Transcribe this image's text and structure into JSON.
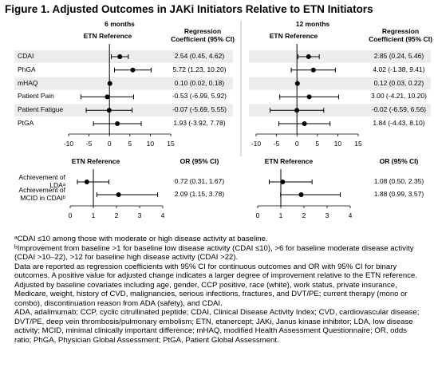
{
  "title": "Figure 1. Adjusted Outcomes in JAKi Initiators Relative to ETN Initiators",
  "chart_data": [
    {
      "type": "forest",
      "title": "6 months",
      "reference_label": "ETN Reference",
      "value_header": "Regression Coefficient (95% CI)",
      "categories": [
        "CDAI",
        "PhGA",
        "mHAQ",
        "Patient Pain",
        "Patient Fatigue",
        "PtGA"
      ],
      "values": [
        2.54,
        5.72,
        0.1,
        -0.53,
        -0.07,
        1.93
      ],
      "ci_low": [
        0.45,
        1.23,
        0.02,
        -6.99,
        -5.69,
        -3.92
      ],
      "ci_high": [
        4.62,
        10.2,
        0.18,
        5.92,
        5.55,
        7.78
      ],
      "value_labels": [
        "2.54 (0.45, 4.62)",
        "5.72 (1.23, 10.20)",
        "0.10 (0.02, 0.18)",
        "-0.53 (-6.99, 5.92)",
        "-0.07 (-5.69, 5.55)",
        "1.93 (-3.92, 7.78)"
      ],
      "reference": 0,
      "xlim": [
        -10,
        15
      ],
      "xticks": [
        -10,
        -5,
        0,
        5,
        10,
        15
      ],
      "color": "#000000"
    },
    {
      "type": "forest",
      "title": "12 months",
      "reference_label": "ETN Reference",
      "value_header": "Regression Coefficient (95% CI)",
      "values": [
        2.85,
        4.02,
        0.12,
        3.0,
        -0.02,
        1.84
      ],
      "ci_low": [
        0.24,
        -1.38,
        0.03,
        -4.21,
        -6.59,
        -4.43
      ],
      "ci_high": [
        5.46,
        9.41,
        0.22,
        10.2,
        6.56,
        8.1
      ],
      "value_labels": [
        "2.85 (0.24, 5.46)",
        "4.02 (-1.38, 9.41)",
        "0.12 (0.03, 0.22)",
        "3.00 (-4.21, 10.20)",
        "-0.02 (-6.59, 6.56)",
        "1.84 (-4.43, 8.10)"
      ],
      "reference": 0,
      "xlim": [
        -10,
        15
      ],
      "xticks": [
        -10,
        -5,
        0,
        5,
        10,
        15
      ],
      "color": "#000000"
    },
    {
      "type": "forest",
      "reference_label": "ETN Reference",
      "value_header": "OR (95% CI)",
      "categories": [
        "Achievement of LDAᵃ",
        "Achievement of MCID in CDAIᵇ"
      ],
      "values": [
        0.72,
        2.09
      ],
      "ci_low": [
        0.31,
        1.15
      ],
      "ci_high": [
        1.67,
        3.78
      ],
      "value_labels": [
        "0.72 (0.31, 1.67)",
        "2.09 (1.15, 3.78)"
      ],
      "reference": 1,
      "xlim": [
        0,
        4
      ],
      "xticks": [
        0,
        1,
        2,
        3,
        4
      ],
      "color": "#000000"
    },
    {
      "type": "forest",
      "reference_label": "ETN Reference",
      "value_header": "OR (95% CI)",
      "values": [
        1.08,
        1.88
      ],
      "ci_low": [
        0.5,
        0.99
      ],
      "ci_high": [
        2.35,
        3.57
      ],
      "value_labels": [
        "1.08 (0.50, 2.35)",
        "1.88 (0.99, 3.57)"
      ],
      "reference": 1,
      "xlim": [
        0,
        4
      ],
      "xticks": [
        0,
        1,
        2,
        3,
        4
      ],
      "color": "#000000"
    }
  ],
  "footnotes": [
    "ᵃCDAI ≤10 among those with moderate or high disease activity at baseline.",
    "ᵇImprovement from baseline >1 for baseline low disease activity (CDAI ≤10), >6 for baseline moderate disease activity (CDAI >10–22), >12 for baseline high disease activity (CDAI >22).",
    "Data are reported as regression coefficients with 95% CI for continuous outcomes and OR with 95% CI for binary outcomes. A positive value for adjusted change indicates a larger degree of improvement relative to the ETN reference. Adjusted by baseline covariates including age, gender, CCP positive, race (white), work status, private insurance, Medicare, weight, history of CVD, malignancies, serious infections, fractures, and DVT/PE; current therapy (mono or combo), discontinuation reason from ADA (safety), and CDAI.",
    "ADA, adalimumab; CCP, cyclic citrullinated peptide; CDAI, Clinical Disease Activity Index; CVD, cardiovascular disease; DVT/PE, deep vein thrombosis/pulmonary embolism; ETN, etanercept; JAKi, Janus kinase inhibitor; LDA, low disease activity; MCID, minimal clinically important difference; mHAQ, modified Health Assessment Questionnaire; OR, odds ratio; PhGA, Physician Global Assessment; PtGA, Patient Global Assessment."
  ]
}
